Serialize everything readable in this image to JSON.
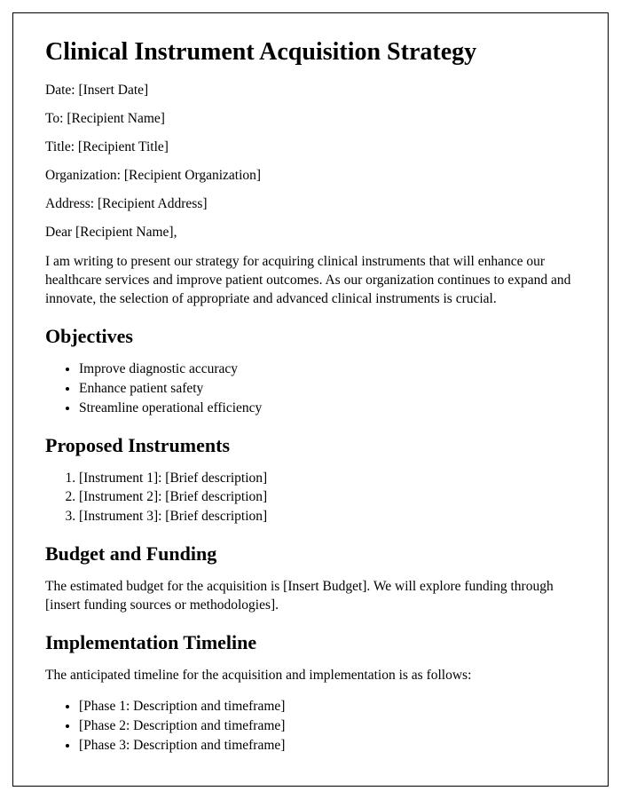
{
  "title": "Clinical Instrument Acquisition Strategy",
  "fields": {
    "date": "Date: [Insert Date]",
    "to": "To: [Recipient Name]",
    "title": "Title: [Recipient Title]",
    "organization": "Organization: [Recipient Organization]",
    "address": "Address: [Recipient Address]"
  },
  "salutation": "Dear [Recipient Name],",
  "intro": "I am writing to present our strategy for acquiring clinical instruments that will enhance our healthcare services and improve patient outcomes. As our organization continues to expand and innovate, the selection of appropriate and advanced clinical instruments is crucial.",
  "sections": {
    "objectives": {
      "heading": "Objectives",
      "items": [
        "Improve diagnostic accuracy",
        "Enhance patient safety",
        "Streamline operational efficiency"
      ]
    },
    "proposed": {
      "heading": "Proposed Instruments",
      "items": [
        "[Instrument 1]: [Brief description]",
        "[Instrument 2]: [Brief description]",
        "[Instrument 3]: [Brief description]"
      ]
    },
    "budget": {
      "heading": "Budget and Funding",
      "text": "The estimated budget for the acquisition is [Insert Budget]. We will explore funding through [insert funding sources or methodologies]."
    },
    "timeline": {
      "heading": "Implementation Timeline",
      "text": "The anticipated timeline for the acquisition and implementation is as follows:",
      "items": [
        "[Phase 1: Description and timeframe]",
        "[Phase 2: Description and timeframe]",
        "[Phase 3: Description and timeframe]"
      ]
    }
  },
  "styling": {
    "page_border_color": "#000000",
    "background_color": "#ffffff",
    "text_color": "#000000",
    "h1_fontsize": 28,
    "h2_fontsize": 22,
    "body_fontsize": 15.5,
    "font_family": "Times New Roman"
  }
}
